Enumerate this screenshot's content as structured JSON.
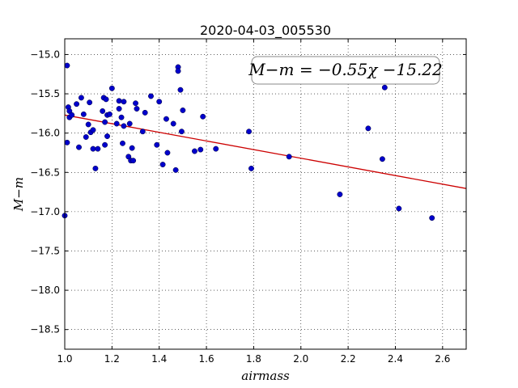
{
  "chart_data": {
    "type": "scatter",
    "title": "2020-04-03_005530",
    "xlabel": "airmass",
    "ylabel": "M−m",
    "xlim": [
      1.0,
      2.7
    ],
    "ylim": [
      -18.75,
      -14.8
    ],
    "y_inverted": true,
    "grid": true,
    "x_ticks": [
      1.0,
      1.2,
      1.4,
      1.6,
      1.8,
      2.0,
      2.2,
      2.4,
      2.6
    ],
    "x_tick_labels": [
      "1.0",
      "1.2",
      "1.4",
      "1.6",
      "1.8",
      "2.0",
      "2.2",
      "2.4",
      "2.6"
    ],
    "y_ticks": [
      -15.0,
      -15.5,
      -16.0,
      -16.5,
      -17.0,
      -17.5,
      -18.0,
      -18.5
    ],
    "y_tick_labels": [
      "−15.0",
      "−15.5",
      "−16.0",
      "−16.5",
      "−17.0",
      "−17.5",
      "−18.0",
      "−18.5"
    ],
    "annotation": "M−m = −0.55χ −15.22",
    "point_color": "#0000cc",
    "line_color": "#cc0000",
    "fit": {
      "slope": -0.55,
      "intercept": -15.22
    },
    "series": [
      {
        "x": [
          1.0,
          1.01,
          1.01,
          1.015,
          1.02,
          1.02,
          1.03,
          1.05,
          1.06,
          1.07,
          1.08,
          1.09,
          1.1,
          1.105,
          1.11,
          1.12,
          1.12,
          1.13,
          1.14,
          1.16,
          1.165,
          1.17,
          1.17,
          1.175,
          1.18,
          1.18,
          1.19,
          1.2,
          1.22,
          1.23,
          1.23,
          1.24,
          1.245,
          1.25,
          1.25,
          1.27,
          1.275,
          1.28,
          1.285,
          1.29,
          1.3,
          1.305,
          1.33,
          1.34,
          1.365,
          1.39,
          1.4,
          1.415,
          1.43,
          1.435,
          1.46,
          1.47,
          1.48,
          1.48,
          1.49,
          1.495,
          1.5,
          1.55,
          1.575,
          1.585,
          1.64,
          1.78,
          1.79,
          1.95,
          2.165,
          2.285,
          2.345,
          2.355,
          2.415,
          2.555
        ],
        "y": [
          -17.05,
          -15.14,
          -16.12,
          -15.67,
          -15.72,
          -15.8,
          -15.77,
          -15.63,
          -16.18,
          -15.55,
          -15.76,
          -16.05,
          -15.89,
          -15.61,
          -15.99,
          -15.96,
          -16.2,
          -16.45,
          -16.2,
          -15.72,
          -15.55,
          -15.86,
          -16.15,
          -15.57,
          -15.77,
          -16.04,
          -15.76,
          -15.43,
          -15.88,
          -15.59,
          -15.69,
          -15.8,
          -16.13,
          -15.6,
          -15.91,
          -16.3,
          -15.88,
          -16.35,
          -16.19,
          -16.35,
          -15.62,
          -15.69,
          -15.98,
          -15.74,
          -15.53,
          -16.15,
          -15.6,
          -16.4,
          -15.82,
          -16.25,
          -15.88,
          -16.47,
          -15.16,
          -15.21,
          -15.45,
          -15.98,
          -15.71,
          -16.23,
          -16.21,
          -15.79,
          -16.2,
          -15.98,
          -16.45,
          -16.3,
          -16.78,
          -15.94,
          -16.33,
          -15.42,
          -16.96,
          -17.08
        ]
      }
    ]
  }
}
